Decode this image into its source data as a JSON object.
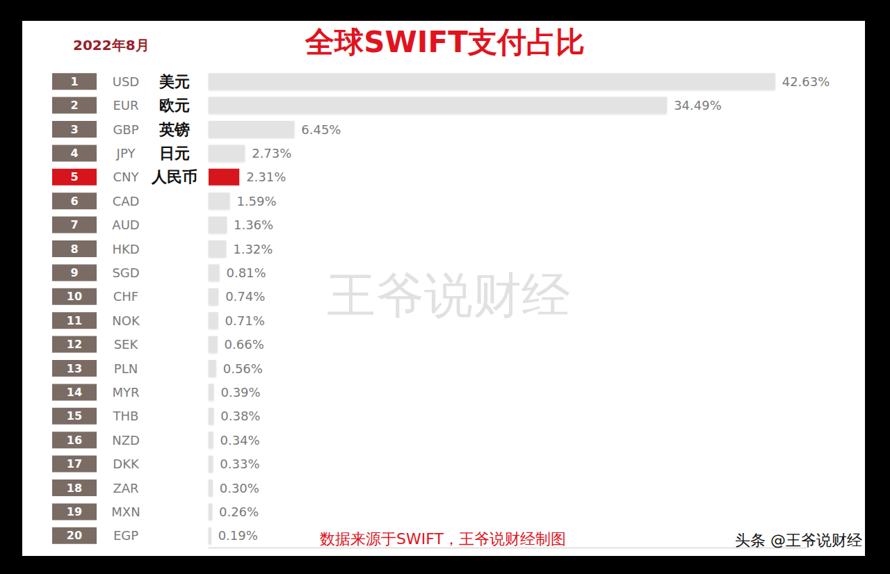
{
  "chart_data": {
    "type": "bar",
    "orientation": "horizontal",
    "title": "全球SWIFT支付占比",
    "subtitle": "2022年8月",
    "source": "数据来源于SWIFT，王爷说财经制图",
    "watermark": "王爷说财经",
    "credit": "头条 @王爷说财经",
    "ranks": [
      1,
      2,
      3,
      4,
      5,
      6,
      7,
      8,
      9,
      10,
      11,
      12,
      13,
      14,
      15,
      16,
      17,
      18,
      19,
      20
    ],
    "categories": [
      "USD",
      "EUR",
      "GBP",
      "JPY",
      "CNY",
      "CAD",
      "AUD",
      "HKD",
      "SGD",
      "CHF",
      "NOK",
      "SEK",
      "PLN",
      "MYR",
      "THB",
      "NZD",
      "DKK",
      "ZAR",
      "MXN",
      "EGP"
    ],
    "labels_zh": [
      "美元",
      "欧元",
      "英镑",
      "日元",
      "人民币",
      null,
      null,
      null,
      null,
      null,
      null,
      null,
      null,
      null,
      null,
      null,
      null,
      null,
      null,
      null
    ],
    "values": [
      42.63,
      34.49,
      6.45,
      2.73,
      2.31,
      1.59,
      1.36,
      1.32,
      0.81,
      0.74,
      0.71,
      0.66,
      0.56,
      0.39,
      0.38,
      0.34,
      0.33,
      0.3,
      0.26,
      0.19
    ],
    "value_labels": [
      "42.63%",
      "34.49%",
      "6.45%",
      "2.73%",
      "2.31%",
      "1.59%",
      "1.36%",
      "1.32%",
      "0.81%",
      "0.74%",
      "0.71%",
      "0.66%",
      "0.56%",
      "0.39%",
      "0.38%",
      "0.34%",
      "0.33%",
      "0.30%",
      "0.26%",
      "0.19%"
    ],
    "colors": [
      "#e3e3e3",
      "#e3e3e3",
      "#e3e3e3",
      "#e3e3e3",
      "#d6141c",
      "#e3e3e3",
      "#e3e3e3",
      "#e3e3e3",
      "#e3e3e3",
      "#e3e3e3",
      "#e3e3e3",
      "#e3e3e3",
      "#e3e3e3",
      "#e3e3e3",
      "#e3e3e3",
      "#e3e3e3",
      "#e3e3e3",
      "#e3e3e3",
      "#e3e3e3",
      "#e3e3e3"
    ],
    "xlim": [
      0,
      45
    ],
    "data_labels": true,
    "tick_labels": false,
    "grid": false
  }
}
